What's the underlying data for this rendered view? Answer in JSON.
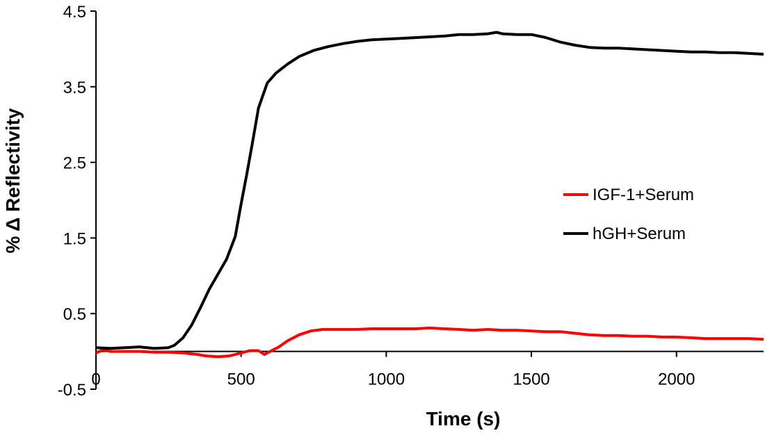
{
  "chart_data": {
    "type": "line",
    "xlabel": "Time (s)",
    "ylabel": "% Δ Reflectivity",
    "xlim": [
      0,
      2300
    ],
    "ylim": [
      -0.5,
      4.5
    ],
    "xticks": [
      0,
      500,
      1000,
      1500,
      2000
    ],
    "xtick_labels": [
      "0",
      "500",
      "1000",
      "1500",
      "2000"
    ],
    "yticks": [
      -0.5,
      0.5,
      1.5,
      2.5,
      3.5,
      4.5
    ],
    "ytick_labels": [
      "-0.5",
      "0.5",
      "1.5",
      "2.5",
      "3.5",
      "4.5"
    ],
    "legend_position": "center-right",
    "series": [
      {
        "name": "IGF-1+Serum",
        "color": "#ff0000",
        "points": [
          [
            0,
            -0.02
          ],
          [
            25,
            0.02
          ],
          [
            50,
            0.0
          ],
          [
            100,
            0.0
          ],
          [
            150,
            0.0
          ],
          [
            200,
            -0.01
          ],
          [
            250,
            -0.01
          ],
          [
            300,
            -0.02
          ],
          [
            350,
            -0.04
          ],
          [
            380,
            -0.06
          ],
          [
            420,
            -0.07
          ],
          [
            460,
            -0.06
          ],
          [
            500,
            -0.02
          ],
          [
            530,
            0.01
          ],
          [
            560,
            0.01
          ],
          [
            580,
            -0.04
          ],
          [
            600,
            0.0
          ],
          [
            630,
            0.06
          ],
          [
            660,
            0.14
          ],
          [
            700,
            0.22
          ],
          [
            740,
            0.27
          ],
          [
            780,
            0.29
          ],
          [
            850,
            0.29
          ],
          [
            900,
            0.29
          ],
          [
            950,
            0.3
          ],
          [
            1000,
            0.3
          ],
          [
            1050,
            0.3
          ],
          [
            1100,
            0.3
          ],
          [
            1150,
            0.31
          ],
          [
            1200,
            0.3
          ],
          [
            1250,
            0.29
          ],
          [
            1300,
            0.28
          ],
          [
            1350,
            0.29
          ],
          [
            1400,
            0.28
          ],
          [
            1450,
            0.28
          ],
          [
            1500,
            0.27
          ],
          [
            1550,
            0.26
          ],
          [
            1600,
            0.26
          ],
          [
            1650,
            0.24
          ],
          [
            1700,
            0.22
          ],
          [
            1750,
            0.21
          ],
          [
            1800,
            0.21
          ],
          [
            1850,
            0.2
          ],
          [
            1900,
            0.2
          ],
          [
            1950,
            0.19
          ],
          [
            2000,
            0.19
          ],
          [
            2050,
            0.18
          ],
          [
            2100,
            0.17
          ],
          [
            2150,
            0.17
          ],
          [
            2200,
            0.17
          ],
          [
            2250,
            0.17
          ],
          [
            2300,
            0.16
          ]
        ]
      },
      {
        "name": "hGH+Serum",
        "color": "#000000",
        "points": [
          [
            0,
            0.05
          ],
          [
            50,
            0.04
          ],
          [
            100,
            0.05
          ],
          [
            150,
            0.06
          ],
          [
            200,
            0.04
          ],
          [
            250,
            0.05
          ],
          [
            270,
            0.08
          ],
          [
            300,
            0.18
          ],
          [
            330,
            0.35
          ],
          [
            360,
            0.58
          ],
          [
            390,
            0.82
          ],
          [
            420,
            1.02
          ],
          [
            450,
            1.22
          ],
          [
            480,
            1.52
          ],
          [
            500,
            1.95
          ],
          [
            520,
            2.35
          ],
          [
            540,
            2.78
          ],
          [
            560,
            3.22
          ],
          [
            590,
            3.55
          ],
          [
            620,
            3.68
          ],
          [
            660,
            3.8
          ],
          [
            700,
            3.9
          ],
          [
            750,
            3.98
          ],
          [
            800,
            4.03
          ],
          [
            850,
            4.07
          ],
          [
            900,
            4.1
          ],
          [
            950,
            4.12
          ],
          [
            1000,
            4.13
          ],
          [
            1050,
            4.14
          ],
          [
            1100,
            4.15
          ],
          [
            1150,
            4.16
          ],
          [
            1200,
            4.17
          ],
          [
            1250,
            4.19
          ],
          [
            1300,
            4.19
          ],
          [
            1350,
            4.2
          ],
          [
            1380,
            4.22
          ],
          [
            1400,
            4.2
          ],
          [
            1450,
            4.19
          ],
          [
            1500,
            4.19
          ],
          [
            1550,
            4.15
          ],
          [
            1600,
            4.09
          ],
          [
            1650,
            4.05
          ],
          [
            1700,
            4.02
          ],
          [
            1750,
            4.01
          ],
          [
            1800,
            4.01
          ],
          [
            1850,
            4.0
          ],
          [
            1900,
            3.99
          ],
          [
            1950,
            3.98
          ],
          [
            2000,
            3.97
          ],
          [
            2050,
            3.96
          ],
          [
            2100,
            3.96
          ],
          [
            2150,
            3.95
          ],
          [
            2200,
            3.95
          ],
          [
            2250,
            3.94
          ],
          [
            2300,
            3.93
          ]
        ]
      }
    ]
  }
}
